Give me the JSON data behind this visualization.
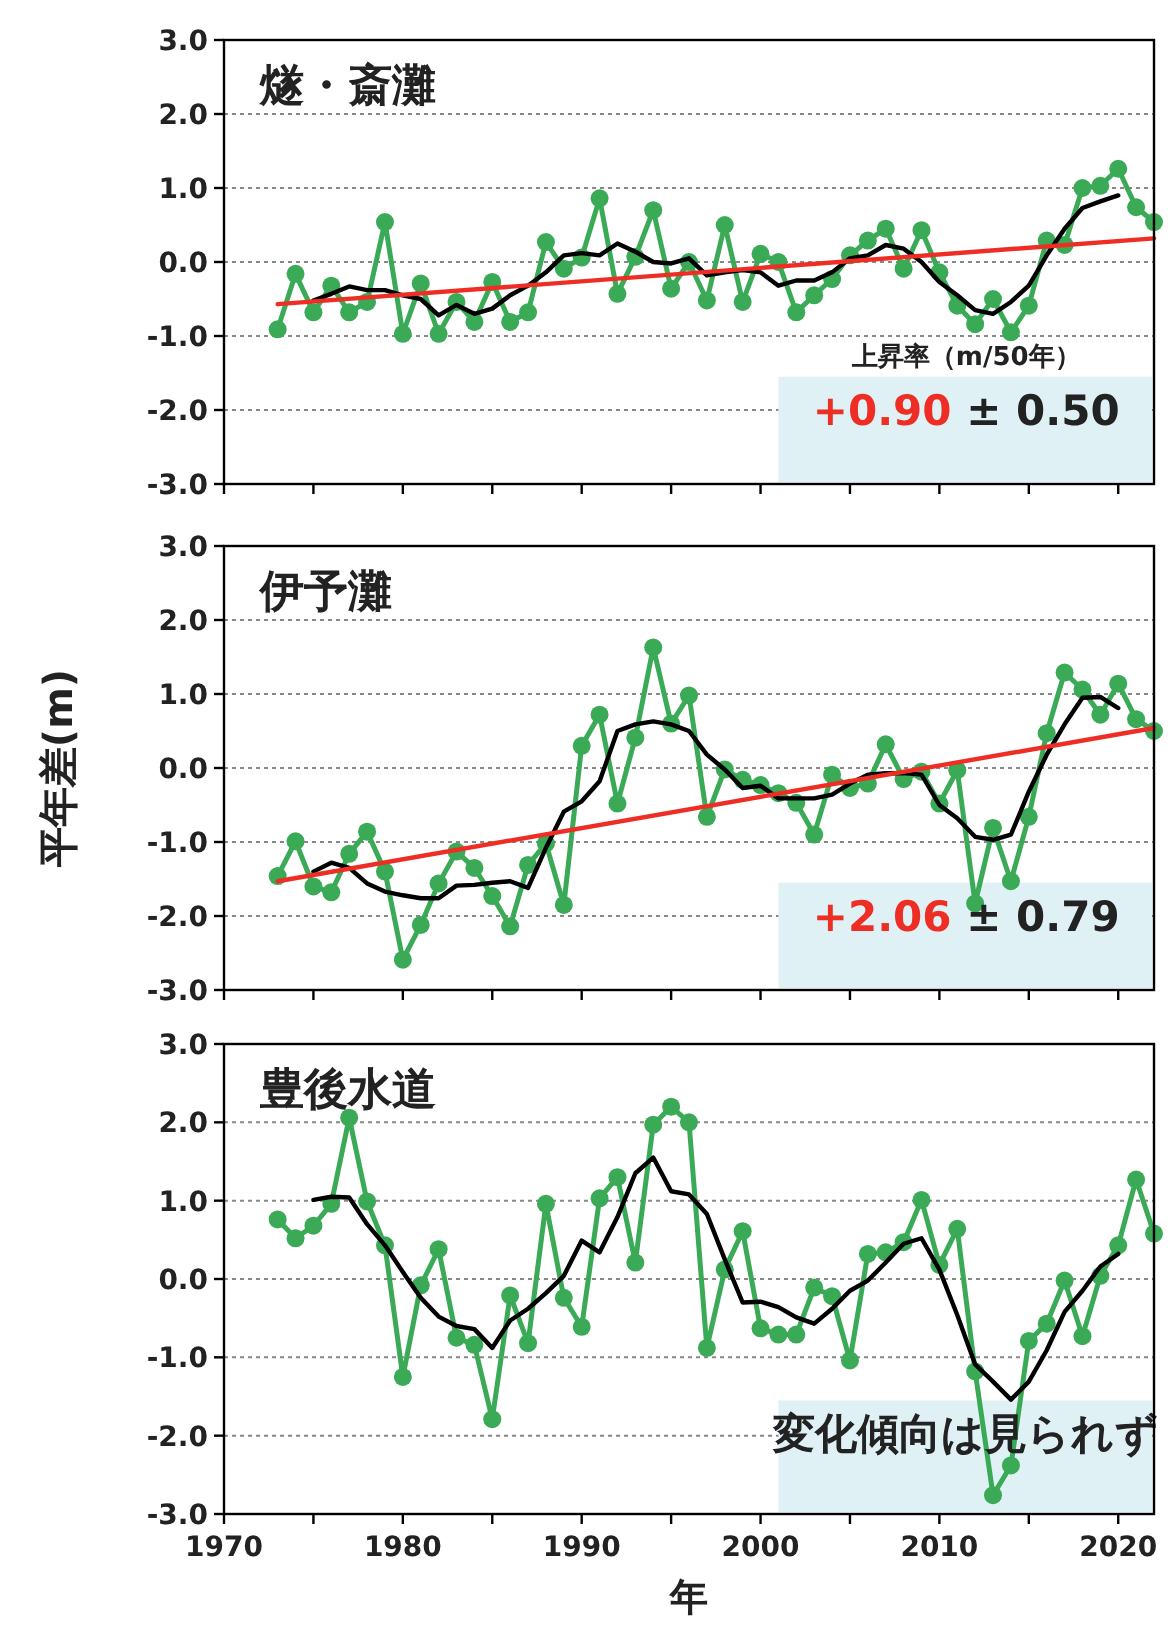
{
  "chart_data": [
    {
      "type": "line",
      "title": "燧・斎灘",
      "annotations": [
        "上昇率（m/50年）",
        "+0.90 ± 0.50"
      ],
      "grid": "y",
      "tick_labels": "y",
      "xlim": [
        1970,
        2022
      ],
      "ylim": [
        -3,
        3
      ],
      "xticks": [
        {
          "value": 1970,
          "label": null
        },
        {
          "value": 1975,
          "label": null
        },
        {
          "value": 1980,
          "label": null
        },
        {
          "value": 1985,
          "label": null
        },
        {
          "value": 1990,
          "label": null
        },
        {
          "value": 1995,
          "label": null
        },
        {
          "value": 2000,
          "label": null
        },
        {
          "value": 2005,
          "label": null
        },
        {
          "value": 2010,
          "label": null
        },
        {
          "value": 2015,
          "label": null
        },
        {
          "value": 2020,
          "label": null
        }
      ],
      "yticks": [
        {
          "value": -3,
          "label": "-3.0"
        },
        {
          "value": -2,
          "label": "-2.0"
        },
        {
          "value": -1,
          "label": "-1.0"
        },
        {
          "value": 0,
          "label": "0.0"
        },
        {
          "value": 1,
          "label": "1.0"
        },
        {
          "value": 2,
          "label": "2.0"
        },
        {
          "value": 3,
          "label": "3.0"
        }
      ],
      "x": [
        1973,
        1974,
        1975,
        1976,
        1977,
        1978,
        1979,
        1980,
        1981,
        1982,
        1983,
        1984,
        1985,
        1986,
        1987,
        1988,
        1989,
        1990,
        1991,
        1992,
        1993,
        1994,
        1995,
        1996,
        1997,
        1998,
        1999,
        2000,
        2001,
        2002,
        2003,
        2004,
        2005,
        2006,
        2007,
        2008,
        2009,
        2010,
        2011,
        2012,
        2013,
        2014,
        2015,
        2016,
        2017,
        2018,
        2019,
        2020,
        2021,
        2022
      ],
      "series": [
        {
          "color": "#3aaa57",
          "marker": "circle",
          "values": [
            -0.91,
            -0.16,
            -0.68,
            -0.32,
            -0.68,
            -0.54,
            0.54,
            -0.97,
            -0.29,
            -0.97,
            -0.54,
            -0.81,
            -0.27,
            -0.81,
            -0.68,
            0.27,
            -0.09,
            0.06,
            0.86,
            -0.43,
            0.07,
            0.7,
            -0.36,
            0.0,
            -0.52,
            0.5,
            -0.54,
            0.11,
            0.0,
            -0.68,
            -0.45,
            -0.23,
            0.09,
            0.29,
            0.45,
            -0.09,
            0.43,
            -0.14,
            -0.59,
            -0.84,
            -0.5,
            -0.95,
            -0.59,
            0.29,
            0.23,
            1.0,
            1.03,
            1.26,
            0.74,
            0.54
          ]
        },
        {
          "color": "#000000",
          "marker": "none",
          "x": [
            1975,
            1976,
            1977,
            1978,
            1979,
            1980,
            1981,
            1982,
            1983,
            1984,
            1985,
            1986,
            1987,
            1988,
            1989,
            1990,
            1991,
            1992,
            1993,
            1994,
            1995,
            1996,
            1997,
            1998,
            1999,
            2000,
            2001,
            2002,
            2003,
            2004,
            2005,
            2006,
            2007,
            2008,
            2009,
            2010,
            2011,
            2012,
            2013,
            2014,
            2015,
            2016,
            2017,
            2018,
            2019,
            2020
          ],
          "values": [
            -0.52,
            -0.43,
            -0.33,
            -0.38,
            -0.38,
            -0.45,
            -0.5,
            -0.72,
            -0.58,
            -0.7,
            -0.63,
            -0.45,
            -0.32,
            -0.14,
            0.09,
            0.12,
            0.09,
            0.25,
            0.14,
            0.0,
            -0.02,
            0.05,
            -0.18,
            -0.14,
            -0.11,
            -0.14,
            -0.32,
            -0.25,
            -0.25,
            -0.14,
            0.05,
            0.09,
            0.23,
            0.18,
            0.0,
            -0.27,
            -0.45,
            -0.65,
            -0.7,
            -0.54,
            -0.32,
            0.09,
            0.45,
            0.73,
            0.82,
            0.9
          ]
        },
        {
          "color": "#ee2e24",
          "marker": "none",
          "x": [
            1973,
            2022
          ],
          "values": [
            -0.57,
            0.32
          ]
        }
      ]
    },
    {
      "type": "line",
      "title": "伊予灘",
      "ylabel": "平年差(m)",
      "annotations": [
        "+2.06 ± 0.79"
      ],
      "grid": "y",
      "tick_labels": "y",
      "xlim": [
        1970,
        2022
      ],
      "ylim": [
        -3,
        3
      ],
      "xticks": [
        {
          "value": 1970,
          "label": null
        },
        {
          "value": 1975,
          "label": null
        },
        {
          "value": 1980,
          "label": null
        },
        {
          "value": 1985,
          "label": null
        },
        {
          "value": 1990,
          "label": null
        },
        {
          "value": 1995,
          "label": null
        },
        {
          "value": 2000,
          "label": null
        },
        {
          "value": 2005,
          "label": null
        },
        {
          "value": 2010,
          "label": null
        },
        {
          "value": 2015,
          "label": null
        },
        {
          "value": 2020,
          "label": null
        }
      ],
      "yticks": [
        {
          "value": -3,
          "label": "-3.0"
        },
        {
          "value": -2,
          "label": "-2.0"
        },
        {
          "value": -1,
          "label": "-1.0"
        },
        {
          "value": 0,
          "label": "0.0"
        },
        {
          "value": 1,
          "label": "1.0"
        },
        {
          "value": 2,
          "label": "2.0"
        },
        {
          "value": 3,
          "label": "3.0"
        }
      ],
      "x": [
        1973,
        1974,
        1975,
        1976,
        1977,
        1978,
        1979,
        1980,
        1981,
        1982,
        1983,
        1984,
        1985,
        1986,
        1987,
        1988,
        1989,
        1990,
        1991,
        1992,
        1993,
        1994,
        1995,
        1996,
        1997,
        1998,
        1999,
        2000,
        2001,
        2002,
        2003,
        2004,
        2005,
        2006,
        2007,
        2008,
        2009,
        2010,
        2011,
        2012,
        2013,
        2014,
        2015,
        2016,
        2017,
        2018,
        2019,
        2020,
        2021,
        2022
      ],
      "series": [
        {
          "color": "#3aaa57",
          "marker": "circle",
          "values": [
            -1.46,
            -0.99,
            -1.6,
            -1.68,
            -1.16,
            -0.86,
            -1.4,
            -2.59,
            -2.12,
            -1.56,
            -1.13,
            -1.35,
            -1.73,
            -2.14,
            -1.31,
            -1.02,
            -1.85,
            0.3,
            0.72,
            -0.48,
            0.41,
            1.63,
            0.6,
            0.98,
            -0.66,
            -0.02,
            -0.16,
            -0.23,
            -0.34,
            -0.47,
            -0.9,
            -0.09,
            -0.27,
            -0.21,
            0.32,
            -0.15,
            -0.05,
            -0.48,
            -0.03,
            -1.83,
            -0.81,
            -1.53,
            -0.66,
            0.47,
            1.29,
            1.06,
            0.72,
            1.14,
            0.66,
            0.5
          ]
        },
        {
          "color": "#000000",
          "marker": "none",
          "x": [
            1975,
            1976,
            1977,
            1978,
            1979,
            1980,
            1981,
            1982,
            1983,
            1984,
            1985,
            1986,
            1987,
            1988,
            1989,
            1990,
            1991,
            1992,
            1993,
            1994,
            1995,
            1996,
            1997,
            1998,
            1999,
            2000,
            2001,
            2002,
            2003,
            2004,
            2005,
            2006,
            2007,
            2008,
            2009,
            2010,
            2011,
            2012,
            2013,
            2014,
            2015,
            2016,
            2017,
            2018,
            2019,
            2020
          ],
          "values": [
            -1.4,
            -1.28,
            -1.35,
            -1.56,
            -1.67,
            -1.72,
            -1.76,
            -1.76,
            -1.59,
            -1.58,
            -1.55,
            -1.53,
            -1.62,
            -1.08,
            -0.59,
            -0.45,
            -0.18,
            0.5,
            0.59,
            0.63,
            0.59,
            0.5,
            0.18,
            -0.02,
            -0.27,
            -0.24,
            -0.41,
            -0.41,
            -0.41,
            -0.36,
            -0.21,
            -0.09,
            -0.07,
            -0.07,
            -0.09,
            -0.5,
            -0.68,
            -0.93,
            -0.97,
            -0.9,
            -0.32,
            0.18,
            0.59,
            0.95,
            0.96,
            0.81
          ]
        },
        {
          "color": "#ee2e24",
          "marker": "none",
          "x": [
            1973,
            2022
          ],
          "values": [
            -1.53,
            0.54
          ]
        }
      ]
    },
    {
      "type": "line",
      "title": "豊後水道",
      "xlabel": "年",
      "annotations": [
        "変化傾向は見られず"
      ],
      "grid": "y",
      "xlim": [
        1970,
        2022
      ],
      "ylim": [
        -3,
        3
      ],
      "xticks": [
        1970,
        {
          "value": 1975,
          "label": null
        },
        1980,
        {
          "value": 1985,
          "label": null
        },
        1990,
        {
          "value": 1995,
          "label": null
        },
        2000,
        {
          "value": 2005,
          "label": null
        },
        2010,
        {
          "value": 2015,
          "label": null
        },
        2020
      ],
      "yticks": [
        {
          "value": -3,
          "label": "-3.0"
        },
        {
          "value": -2,
          "label": "-2.0"
        },
        {
          "value": -1,
          "label": "-1.0"
        },
        {
          "value": 0,
          "label": "0.0"
        },
        {
          "value": 1,
          "label": "1.0"
        },
        {
          "value": 2,
          "label": "2.0"
        },
        {
          "value": 3,
          "label": "3.0"
        }
      ],
      "x": [
        1973,
        1974,
        1975,
        1976,
        1977,
        1978,
        1979,
        1980,
        1981,
        1982,
        1983,
        1984,
        1985,
        1986,
        1987,
        1988,
        1989,
        1990,
        1991,
        1992,
        1993,
        1994,
        1995,
        1996,
        1997,
        1998,
        1999,
        2000,
        2001,
        2002,
        2003,
        2004,
        2005,
        2006,
        2007,
        2008,
        2009,
        2010,
        2011,
        2012,
        2013,
        2014,
        2015,
        2016,
        2017,
        2018,
        2019,
        2020,
        2021,
        2022
      ],
      "series": [
        {
          "color": "#3aaa57",
          "marker": "circle",
          "values": [
            0.76,
            0.52,
            0.68,
            0.96,
            2.06,
            0.99,
            0.43,
            -1.25,
            -0.08,
            0.38,
            -0.75,
            -0.84,
            -1.79,
            -0.21,
            -0.82,
            0.96,
            -0.24,
            -0.61,
            1.03,
            1.3,
            0.21,
            1.97,
            2.2,
            2.0,
            -0.88,
            0.12,
            0.61,
            -0.63,
            -0.71,
            -0.71,
            -0.11,
            -0.22,
            -1.04,
            0.32,
            0.34,
            0.47,
            1.01,
            0.18,
            0.64,
            -1.18,
            -2.76,
            -2.38,
            -0.79,
            -0.57,
            -0.02,
            -0.73,
            0.04,
            0.43,
            1.27,
            0.58
          ]
        },
        {
          "color": "#000000",
          "marker": "none",
          "x": [
            1975,
            1976,
            1977,
            1978,
            1979,
            1980,
            1981,
            1982,
            1983,
            1984,
            1985,
            1986,
            1987,
            1988,
            1989,
            1990,
            1991,
            1992,
            1993,
            1994,
            1995,
            1996,
            1997,
            1998,
            1999,
            2000,
            2001,
            2002,
            2003,
            2004,
            2005,
            2006,
            2007,
            2008,
            2009,
            2010,
            2011,
            2012,
            2013,
            2014,
            2015,
            2016,
            2017,
            2018,
            2019,
            2020
          ],
          "values": [
            1.01,
            1.05,
            1.04,
            0.7,
            0.43,
            0.09,
            -0.24,
            -0.48,
            -0.6,
            -0.64,
            -0.88,
            -0.53,
            -0.38,
            -0.18,
            0.04,
            0.49,
            0.34,
            0.79,
            1.35,
            1.55,
            1.12,
            1.08,
            0.83,
            0.25,
            -0.3,
            -0.29,
            -0.36,
            -0.49,
            -0.57,
            -0.38,
            -0.15,
            -0.02,
            0.21,
            0.45,
            0.52,
            0.12,
            -0.46,
            -1.09,
            -1.31,
            -1.54,
            -1.31,
            -0.91,
            -0.42,
            -0.15,
            0.16,
            0.32
          ]
        }
      ]
    }
  ]
}
